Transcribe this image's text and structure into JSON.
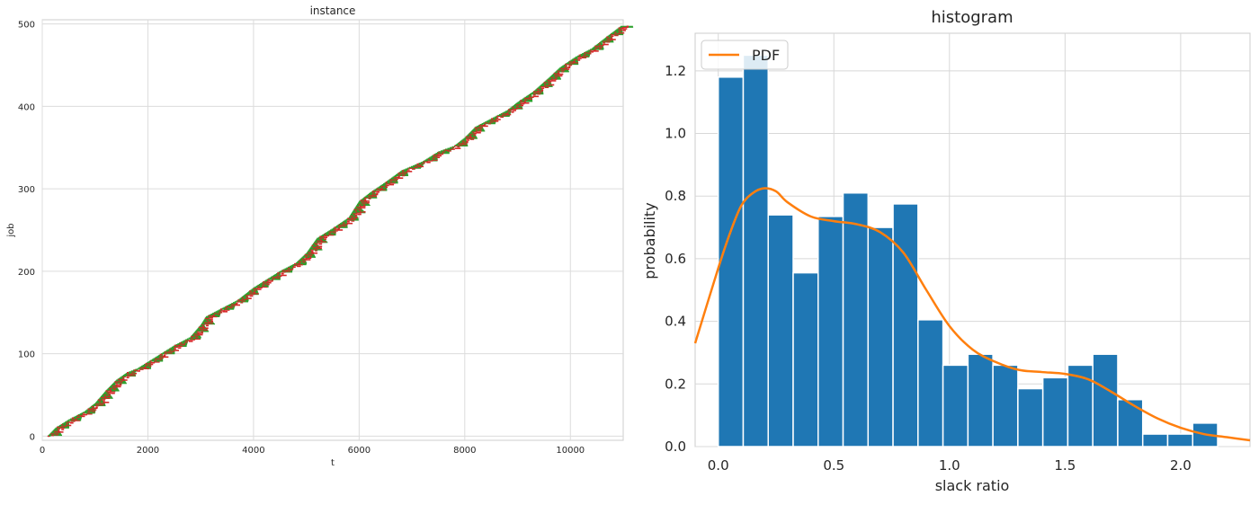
{
  "chart_data": [
    {
      "type": "scatter",
      "title": "instance",
      "xlabel": "t",
      "ylabel": "job",
      "xlim": [
        0,
        11000
      ],
      "ylim": [
        -5,
        505
      ],
      "xticks": [
        0,
        2000,
        4000,
        6000,
        8000,
        10000
      ],
      "yticks": [
        0,
        100,
        200,
        300,
        400,
        500
      ],
      "grid": true,
      "colors": {
        "window": "#2ca02c",
        "schedule": "#d62728"
      },
      "trend": [
        [
          100,
          0
        ],
        [
          250,
          10
        ],
        [
          500,
          20
        ],
        [
          800,
          30
        ],
        [
          1000,
          40
        ],
        [
          1200,
          55
        ],
        [
          1400,
          68
        ],
        [
          1600,
          77
        ],
        [
          1800,
          82
        ],
        [
          2000,
          90
        ],
        [
          2200,
          98
        ],
        [
          2500,
          110
        ],
        [
          2800,
          120
        ],
        [
          3000,
          135
        ],
        [
          3100,
          145
        ],
        [
          3400,
          155
        ],
        [
          3700,
          165
        ],
        [
          4000,
          180
        ],
        [
          4200,
          188
        ],
        [
          4500,
          200
        ],
        [
          4800,
          210
        ],
        [
          5000,
          222
        ],
        [
          5200,
          240
        ],
        [
          5500,
          252
        ],
        [
          5800,
          265
        ],
        [
          6000,
          285
        ],
        [
          6200,
          295
        ],
        [
          6500,
          308
        ],
        [
          6800,
          322
        ],
        [
          7200,
          333
        ],
        [
          7500,
          345
        ],
        [
          7800,
          352
        ],
        [
          8000,
          362
        ],
        [
          8200,
          375
        ],
        [
          8500,
          385
        ],
        [
          8800,
          395
        ],
        [
          9000,
          405
        ],
        [
          9300,
          418
        ],
        [
          9600,
          435
        ],
        [
          9800,
          447
        ],
        [
          10100,
          460
        ],
        [
          10400,
          470
        ],
        [
          10700,
          485
        ],
        [
          10950,
          497
        ]
      ]
    },
    {
      "type": "bar",
      "title": "histogram",
      "xlabel": "slack ratio",
      "ylabel": "probability",
      "xlim": [
        -0.1,
        2.3
      ],
      "ylim": [
        0,
        1.32
      ],
      "xticks": [
        0.0,
        0.5,
        1.0,
        1.5,
        2.0
      ],
      "yticks": [
        0.0,
        0.2,
        0.4,
        0.6,
        0.8,
        1.0,
        1.2
      ],
      "xtick_labels": [
        "0.0",
        "0.5",
        "1.0",
        "1.5",
        "2.0"
      ],
      "ytick_labels": [
        "0.0",
        "0.2",
        "0.4",
        "0.6",
        "0.8",
        "1.0",
        "1.2"
      ],
      "grid": true,
      "bin_start": 0.0,
      "bin_width": 0.108,
      "values": [
        1.18,
        1.25,
        0.74,
        0.555,
        0.735,
        0.81,
        0.7,
        0.775,
        0.405,
        0.26,
        0.295,
        0.26,
        0.185,
        0.22,
        0.26,
        0.295,
        0.15,
        0.04,
        0.04,
        0.075
      ],
      "bar_color": "#1f77b4",
      "series": [
        {
          "name": "PDF",
          "color": "#ff7f0e",
          "x": [
            -0.1,
            0.0,
            0.05,
            0.1,
            0.15,
            0.2,
            0.25,
            0.3,
            0.4,
            0.5,
            0.6,
            0.7,
            0.8,
            0.9,
            1.0,
            1.1,
            1.2,
            1.3,
            1.4,
            1.5,
            1.6,
            1.7,
            1.8,
            1.9,
            2.0,
            2.1,
            2.2,
            2.3
          ],
          "y": [
            0.33,
            0.57,
            0.68,
            0.77,
            0.81,
            0.825,
            0.815,
            0.78,
            0.735,
            0.72,
            0.71,
            0.685,
            0.62,
            0.5,
            0.385,
            0.31,
            0.27,
            0.245,
            0.238,
            0.232,
            0.215,
            0.175,
            0.13,
            0.09,
            0.06,
            0.04,
            0.03,
            0.02
          ]
        }
      ],
      "legend": "top-left"
    }
  ]
}
